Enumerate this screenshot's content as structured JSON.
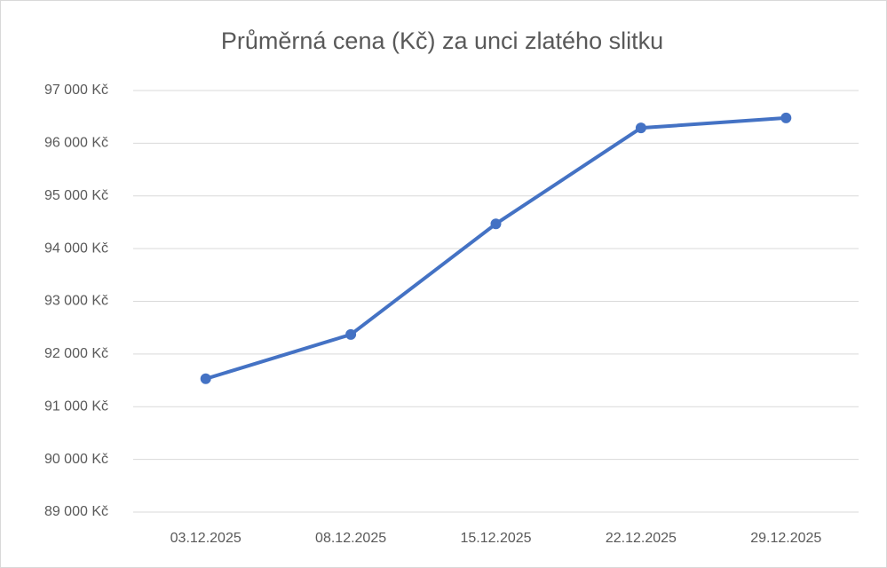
{
  "chart_data": {
    "type": "line",
    "title": "Průměrná cena (Kč) za unci zlatého slitku",
    "categories": [
      "03.12.2025",
      "08.12.2025",
      "15.12.2025",
      "22.12.2025",
      "29.12.2025"
    ],
    "series": [
      {
        "name": "Průměrná cena (Kč)",
        "color": "#4472c4",
        "values": [
          91530,
          92370,
          94470,
          96290,
          96480
        ]
      }
    ],
    "ylim": [
      89000,
      97000
    ],
    "yticks": [
      {
        "value": 89000,
        "label": "89 000 Kč"
      },
      {
        "value": 90000,
        "label": "90 000 Kč"
      },
      {
        "value": 91000,
        "label": "91 000 Kč"
      },
      {
        "value": 92000,
        "label": "92 000 Kč"
      },
      {
        "value": 93000,
        "label": "93 000 Kč"
      },
      {
        "value": 94000,
        "label": "94 000 Kč"
      },
      {
        "value": 95000,
        "label": "95 000 Kč"
      },
      {
        "value": 96000,
        "label": "96 000 Kč"
      },
      {
        "value": 97000,
        "label": "97 000 Kč"
      }
    ],
    "grid": true
  }
}
